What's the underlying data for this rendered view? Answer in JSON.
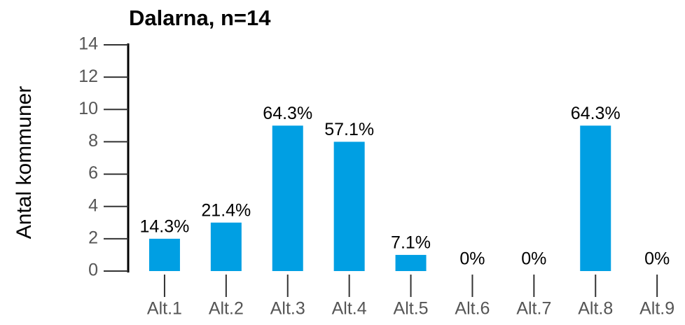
{
  "chart_data": {
    "type": "bar",
    "title": "Dalarna, n=14",
    "y_label": "Antal kommuner",
    "categories": [
      "Alt.1",
      "Alt.2",
      "Alt.3",
      "Alt.4",
      "Alt.5",
      "Alt.6",
      "Alt.7",
      "Alt.8",
      "Alt.9"
    ],
    "values": [
      2,
      3,
      9,
      8,
      1,
      0,
      0,
      9,
      0
    ],
    "value_labels": [
      "14.3%",
      "21.4%",
      "64.3%",
      "57.1%",
      "7.1%",
      "0%",
      "0%",
      "64.3%",
      "0%"
    ],
    "color": "#009fe3",
    "ylim": [
      0,
      14
    ],
    "yticks": [
      0,
      2,
      4,
      6,
      8,
      10,
      12,
      14
    ],
    "grid": false
  }
}
